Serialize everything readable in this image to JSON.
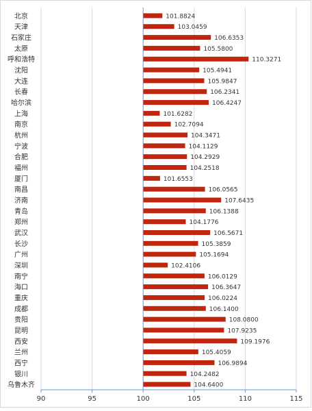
{
  "chart_data": {
    "type": "bar",
    "orientation": "horizontal",
    "categories": [
      "北京",
      "天津",
      "石家庄",
      "太原",
      "呼和浩特",
      "沈阳",
      "大连",
      "长春",
      "哈尔滨",
      "上海",
      "南京",
      "杭州",
      "宁波",
      "合肥",
      "福州",
      "厦门",
      "南昌",
      "济南",
      "青岛",
      "郑州",
      "武汉",
      "长沙",
      "广州",
      "深圳",
      "南宁",
      "海口",
      "重庆",
      "成都",
      "贵阳",
      "昆明",
      "西安",
      "兰州",
      "西宁",
      "银川",
      "乌鲁木齐"
    ],
    "values": [
      101.8824,
      103.0459,
      106.6353,
      105.58,
      110.3271,
      105.4941,
      105.9847,
      106.2341,
      106.4247,
      101.6282,
      102.7094,
      104.3471,
      104.1129,
      104.2929,
      104.2518,
      101.6553,
      106.0565,
      107.6435,
      106.1388,
      104.1776,
      106.5671,
      105.3859,
      105.1694,
      102.4106,
      106.0129,
      106.3647,
      106.0224,
      106.14,
      108.08,
      107.9235,
      109.1976,
      105.4059,
      106.9894,
      104.2482,
      104.64
    ],
    "value_labels": [
      "101.8824",
      "103.0459",
      "106.6353",
      "105.5800",
      "110.3271",
      "105.4941",
      "105.9847",
      "106.2341",
      "106.4247",
      "101.6282",
      "102.7094",
      "104.3471",
      "104.1129",
      "104.2929",
      "104.2518",
      "101.6553",
      "106.0565",
      "107.6435",
      "106.1388",
      "104.1776",
      "106.5671",
      "105.3859",
      "105.1694",
      "102.4106",
      "106.0129",
      "106.3647",
      "106.0224",
      "106.1400",
      "108.0800",
      "107.9235",
      "109.1976",
      "105.4059",
      "106.9894",
      "104.2482",
      "104.6400"
    ],
    "xlim": [
      90,
      115
    ],
    "x_ticks": [
      "90",
      "95",
      "100",
      "105",
      "110",
      "115"
    ],
    "bar_base": 100,
    "bar_color": "#c0250e",
    "grid": true,
    "legend": "none"
  },
  "colors": {
    "bar": "#c0250e",
    "grid": "#d9d9d9",
    "axis": "#5b9bd5",
    "text": "#333333"
  }
}
